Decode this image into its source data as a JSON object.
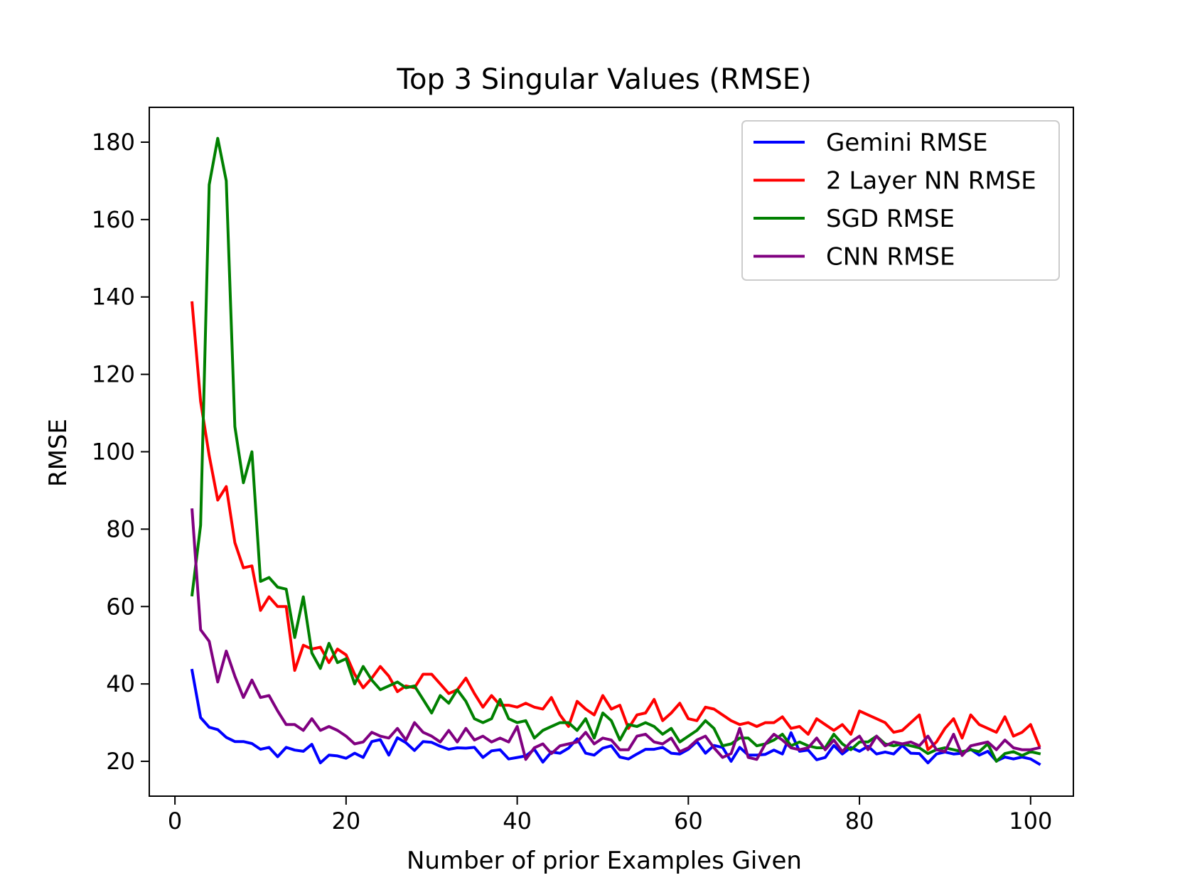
{
  "chart_data": {
    "type": "line",
    "title": "Top 3 Singular Values (RMSE)",
    "xlabel": "Number of prior Examples Given",
    "ylabel": "RMSE",
    "xlim": [
      -3,
      105
    ],
    "ylim": [
      11,
      189
    ],
    "xticks": [
      0,
      20,
      40,
      60,
      80,
      100
    ],
    "yticks": [
      20,
      40,
      60,
      80,
      100,
      120,
      140,
      160,
      180
    ],
    "grid": false,
    "legend_position": "top-right",
    "x_start": 2,
    "series": [
      {
        "name": "Gemini RMSE",
        "color": "#0000ff",
        "values": [
          43.5,
          31.3,
          28.8,
          28.2,
          26.2,
          25.1,
          25.1,
          24.6,
          23.1,
          23.6,
          21.2,
          23.6,
          22.9,
          22.6,
          24.4,
          19.6,
          21.6,
          21.4,
          20.8,
          22.1,
          21.0,
          25.1,
          25.6,
          21.6,
          26.1,
          24.8,
          22.8,
          25.1,
          24.9,
          23.9,
          23.1,
          23.5,
          23.4,
          23.6,
          21.0,
          22.7,
          23.0,
          20.6,
          21.0,
          21.4,
          23.1,
          19.8,
          22.4,
          22.1,
          23.4,
          25.8,
          22.1,
          21.6,
          23.4,
          24.0,
          21.1,
          20.6,
          21.9,
          23.1,
          23.1,
          23.6,
          22.1,
          21.9,
          23.1,
          25.1,
          22.1,
          24.1,
          23.6,
          20.0,
          23.6,
          21.6,
          21.6,
          21.8,
          22.9,
          21.9,
          27.4,
          22.6,
          22.9,
          20.4,
          21.0,
          24.1,
          21.9,
          23.6,
          22.6,
          23.9,
          21.9,
          22.4,
          21.9,
          24.1,
          22.1,
          22.0,
          19.6,
          21.9,
          22.4,
          21.9,
          22.1,
          23.1,
          21.6,
          22.6,
          20.1,
          21.1,
          20.6,
          21.1,
          20.6,
          19.3
        ]
      },
      {
        "name": "2 Layer NN RMSE",
        "color": "#ff0000",
        "values": [
          138.5,
          113.0,
          99.0,
          87.5,
          91.0,
          76.5,
          70.0,
          70.5,
          59.0,
          62.5,
          60.0,
          60.0,
          43.5,
          50.0,
          49.0,
          49.5,
          45.5,
          49.0,
          47.5,
          42.5,
          39.0,
          41.5,
          44.5,
          42.0,
          38.0,
          39.5,
          39.0,
          42.5,
          42.5,
          40.0,
          37.5,
          38.5,
          41.5,
          37.5,
          34.0,
          37.0,
          34.5,
          34.5,
          34.0,
          35.0,
          34.0,
          33.5,
          36.5,
          32.0,
          29.0,
          35.5,
          33.5,
          32.0,
          37.0,
          33.5,
          34.5,
          28.5,
          32.0,
          32.5,
          36.0,
          30.5,
          32.5,
          35.0,
          31.0,
          30.5,
          34.0,
          33.5,
          32.0,
          30.5,
          29.5,
          30.0,
          29.0,
          30.0,
          30.0,
          31.5,
          28.5,
          29.0,
          27.0,
          31.0,
          29.5,
          28.0,
          29.5,
          27.0,
          33.0,
          32.0,
          31.0,
          30.0,
          27.5,
          28.0,
          30.0,
          32.0,
          23.0,
          25.0,
          28.5,
          31.0,
          26.0,
          32.0,
          29.5,
          28.5,
          27.5,
          31.5,
          26.5,
          27.5,
          29.5,
          24.0
        ]
      },
      {
        "name": "SGD RMSE",
        "color": "#008000",
        "values": [
          63.0,
          81.0,
          169.0,
          181.0,
          170.0,
          106.5,
          92.0,
          100.0,
          66.5,
          67.5,
          65.0,
          64.5,
          52.0,
          62.5,
          48.0,
          44.0,
          50.5,
          45.5,
          46.5,
          40.0,
          44.5,
          41.0,
          38.5,
          39.5,
          40.5,
          39.0,
          39.5,
          36.0,
          32.5,
          37.0,
          35.0,
          38.5,
          35.5,
          31.0,
          30.0,
          31.0,
          36.0,
          31.0,
          30.0,
          30.5,
          26.0,
          28.0,
          29.0,
          30.0,
          30.0,
          28.0,
          31.0,
          26.0,
          32.5,
          30.5,
          25.5,
          29.5,
          29.0,
          30.0,
          29.0,
          27.0,
          28.5,
          25.0,
          26.5,
          28.0,
          30.5,
          28.5,
          24.0,
          24.5,
          26.0,
          26.0,
          24.0,
          24.5,
          25.5,
          27.0,
          24.0,
          25.0,
          24.0,
          23.5,
          23.5,
          27.0,
          24.5,
          23.0,
          25.0,
          25.0,
          26.5,
          24.5,
          24.0,
          24.5,
          24.0,
          23.5,
          22.0,
          23.0,
          23.5,
          23.0,
          22.5,
          23.0,
          22.5,
          24.5,
          20.0,
          22.0,
          22.5,
          21.5,
          22.5,
          22.0
        ]
      },
      {
        "name": "CNN RMSE",
        "color": "#800080",
        "values": [
          85.0,
          54.0,
          51.0,
          40.5,
          48.5,
          42.0,
          36.5,
          41.0,
          36.5,
          37.0,
          33.0,
          29.5,
          29.5,
          28.0,
          31.0,
          28.0,
          29.0,
          28.0,
          26.5,
          24.5,
          25.0,
          27.5,
          26.5,
          26.0,
          28.5,
          25.5,
          30.0,
          27.5,
          26.5,
          25.0,
          28.0,
          25.0,
          28.5,
          25.5,
          26.5,
          25.0,
          26.0,
          25.0,
          29.0,
          20.5,
          23.5,
          24.5,
          22.0,
          24.0,
          24.5,
          25.0,
          27.5,
          24.5,
          26.0,
          25.5,
          23.0,
          23.0,
          26.5,
          27.0,
          25.0,
          24.5,
          26.0,
          22.5,
          23.5,
          25.5,
          26.5,
          23.5,
          21.0,
          22.0,
          28.5,
          21.0,
          20.5,
          24.5,
          27.0,
          25.5,
          23.5,
          23.0,
          23.5,
          26.0,
          23.0,
          25.5,
          22.5,
          25.0,
          26.5,
          23.0,
          26.5,
          24.0,
          25.0,
          24.5,
          25.0,
          24.0,
          26.5,
          23.0,
          22.5,
          27.0,
          21.5,
          24.0,
          24.5,
          25.0,
          23.0,
          25.5,
          23.5,
          23.0,
          23.0,
          23.5
        ]
      }
    ]
  }
}
